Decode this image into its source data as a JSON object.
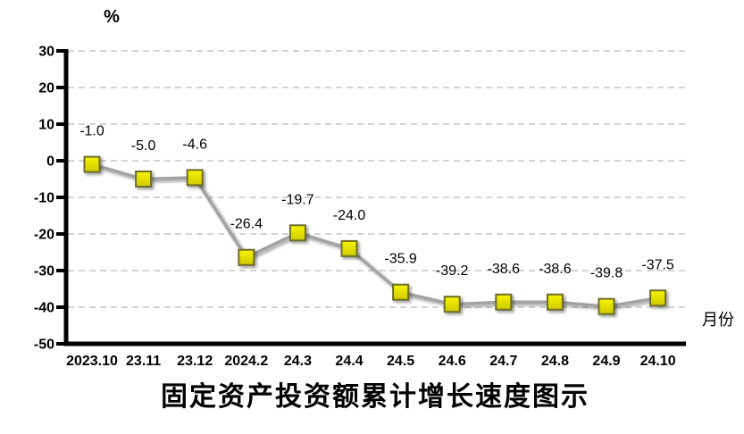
{
  "chart_data": {
    "type": "line",
    "title": "固定资产投资额累计增长速度图示",
    "y_unit_label": "%",
    "x_unit_label": "月份",
    "categories": [
      "2023.10",
      "23.11",
      "23.12",
      "2024.2",
      "24.3",
      "24.4",
      "24.5",
      "24.6",
      "24.7",
      "24.8",
      "24.9",
      "24.10"
    ],
    "values": [
      -1.0,
      -5.0,
      -4.6,
      -26.4,
      -19.7,
      -24.0,
      -35.9,
      -39.2,
      -38.6,
      -38.6,
      -39.8,
      -37.5
    ],
    "value_labels": [
      "-1.0",
      "-5.0",
      "-4.6",
      "-26.4",
      "-19.7",
      "-24.0",
      "-35.9",
      "-39.2",
      "-38.6",
      "-38.6",
      "-39.8",
      "-37.5"
    ],
    "y_ticks": [
      30,
      20,
      10,
      0,
      -10,
      -20,
      -30,
      -40,
      -50
    ],
    "ylim": [
      -50,
      30
    ],
    "xlabel": "月份",
    "ylabel": "%",
    "grid": "horizontal-dashed",
    "legend": "none",
    "marker": "square",
    "colors": {
      "line": "#a3a3a3",
      "marker_fill_top": "#f7f400",
      "marker_fill_bottom": "#cfca00",
      "marker_border": "#6e6e2a",
      "gridline": "#c6c6c6",
      "axis": "#000000",
      "text": "#000000"
    }
  }
}
